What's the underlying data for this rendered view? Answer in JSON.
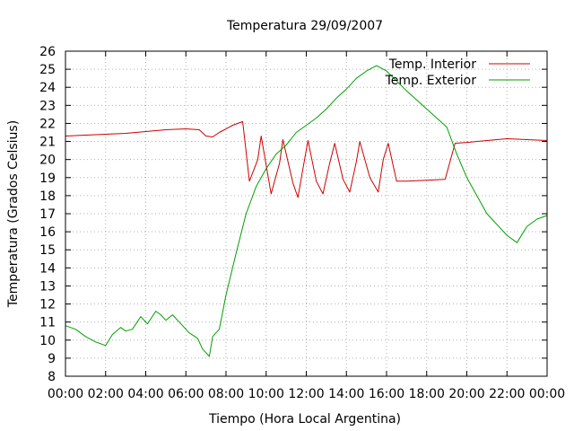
{
  "chart_data": {
    "type": "line",
    "title": "Temperatura 29/09/2007",
    "xlabel": "Tiempo (Hora Local Argentina)",
    "ylabel": "Temperatura (Grados Celsius)",
    "xlim": [
      0,
      24
    ],
    "ylim": [
      8,
      26
    ],
    "x_ticks": [
      "00:00",
      "02:00",
      "04:00",
      "06:00",
      "08:00",
      "10:00",
      "12:00",
      "14:00",
      "16:00",
      "18:00",
      "20:00",
      "22:00",
      "00:00"
    ],
    "y_ticks": [
      "8",
      "9",
      "10",
      "11",
      "12",
      "13",
      "14",
      "15",
      "16",
      "17",
      "18",
      "19",
      "20",
      "21",
      "22",
      "23",
      "24",
      "25",
      "26"
    ],
    "grid": true,
    "legend_position": "top-right",
    "series": [
      {
        "name": "Temp. Interior",
        "color": "#cc0000",
        "points": [
          [
            "00:00",
            21.3
          ],
          [
            "01:00",
            21.35
          ],
          [
            "02:00",
            21.4
          ],
          [
            "03:00",
            21.45
          ],
          [
            "04:00",
            21.55
          ],
          [
            "05:00",
            21.65
          ],
          [
            "06:00",
            21.7
          ],
          [
            "06:40",
            21.65
          ],
          [
            "07:00",
            21.3
          ],
          [
            "07:20",
            21.25
          ],
          [
            "07:40",
            21.5
          ],
          [
            "08:20",
            21.9
          ],
          [
            "08:50",
            22.1
          ],
          [
            "09:10",
            18.8
          ],
          [
            "09:35",
            20.0
          ],
          [
            "09:45",
            21.3
          ],
          [
            "10:15",
            18.1
          ],
          [
            "10:40",
            19.8
          ],
          [
            "10:50",
            21.1
          ],
          [
            "11:20",
            18.7
          ],
          [
            "11:35",
            17.9
          ],
          [
            "11:50",
            19.5
          ],
          [
            "12:05",
            21.05
          ],
          [
            "12:30",
            18.8
          ],
          [
            "12:50",
            18.1
          ],
          [
            "13:10",
            19.8
          ],
          [
            "13:25",
            20.9
          ],
          [
            "13:50",
            18.9
          ],
          [
            "14:10",
            18.2
          ],
          [
            "14:30",
            19.9
          ],
          [
            "14:40",
            21.0
          ],
          [
            "15:10",
            19.0
          ],
          [
            "15:35",
            18.2
          ],
          [
            "15:50",
            20.0
          ],
          [
            "16:05",
            20.9
          ],
          [
            "16:30",
            18.8
          ],
          [
            "17:00",
            18.8
          ],
          [
            "18:00",
            18.85
          ],
          [
            "18:55",
            18.9
          ],
          [
            "19:25",
            20.9
          ],
          [
            "20:00",
            20.95
          ],
          [
            "21:00",
            21.05
          ],
          [
            "22:00",
            21.15
          ],
          [
            "23:00",
            21.1
          ],
          [
            "24:00",
            21.05
          ]
        ]
      },
      {
        "name": "Temp. Exterior",
        "color": "#00a000",
        "points": [
          [
            "00:00",
            10.8
          ],
          [
            "00:30",
            10.6
          ],
          [
            "01:00",
            10.2
          ],
          [
            "01:30",
            9.9
          ],
          [
            "02:00",
            9.7
          ],
          [
            "02:20",
            10.3
          ],
          [
            "02:45",
            10.7
          ],
          [
            "03:00",
            10.5
          ],
          [
            "03:20",
            10.6
          ],
          [
            "03:45",
            11.3
          ],
          [
            "04:05",
            10.9
          ],
          [
            "04:30",
            11.6
          ],
          [
            "04:45",
            11.4
          ],
          [
            "05:00",
            11.1
          ],
          [
            "05:20",
            11.4
          ],
          [
            "05:45",
            10.9
          ],
          [
            "06:10",
            10.4
          ],
          [
            "06:35",
            10.1
          ],
          [
            "06:50",
            9.5
          ],
          [
            "07:10",
            9.1
          ],
          [
            "07:20",
            10.2
          ],
          [
            "07:40",
            10.6
          ],
          [
            "08:00",
            12.5
          ],
          [
            "08:30",
            14.8
          ],
          [
            "09:00",
            17.0
          ],
          [
            "09:30",
            18.5
          ],
          [
            "10:00",
            19.5
          ],
          [
            "10:30",
            20.3
          ],
          [
            "11:00",
            20.8
          ],
          [
            "11:30",
            21.5
          ],
          [
            "12:00",
            21.9
          ],
          [
            "12:30",
            22.3
          ],
          [
            "13:00",
            22.8
          ],
          [
            "13:30",
            23.4
          ],
          [
            "14:00",
            23.9
          ],
          [
            "14:30",
            24.5
          ],
          [
            "15:00",
            24.9
          ],
          [
            "15:30",
            25.2
          ],
          [
            "16:00",
            24.9
          ],
          [
            "17:00",
            23.8
          ],
          [
            "18:00",
            22.8
          ],
          [
            "19:00",
            21.8
          ],
          [
            "19:30",
            20.3
          ],
          [
            "20:00",
            19.0
          ],
          [
            "21:00",
            17.0
          ],
          [
            "22:00",
            15.8
          ],
          [
            "22:30",
            15.4
          ],
          [
            "23:00",
            16.3
          ],
          [
            "23:30",
            16.7
          ],
          [
            "24:00",
            16.9
          ]
        ]
      }
    ]
  }
}
